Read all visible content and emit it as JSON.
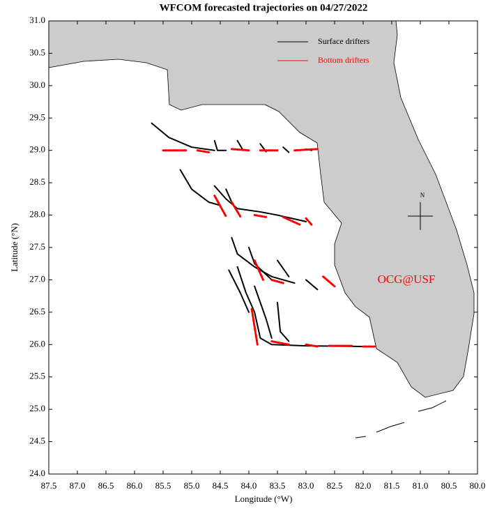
{
  "chart_data": {
    "type": "trajectory-map",
    "title": "WFCOM forecasted trajectories on 04/27/2022",
    "x_label": "Longitude (°W)",
    "y_label": "Latitude (°N)",
    "annotation": "OCG@USF",
    "compass_label": "N",
    "legend_position": "upper right",
    "xlim": [
      87.5,
      80.0
    ],
    "ylim": [
      24.0,
      31.0
    ],
    "xticks": [
      87.5,
      {
        "value": 87,
        "label": "87.0"
      },
      86.5,
      {
        "value": 86,
        "label": "86.0"
      },
      85.5,
      {
        "value": 85,
        "label": "85.0"
      },
      84.5,
      {
        "value": 84,
        "label": "84.0"
      },
      83.5,
      {
        "value": 83,
        "label": "83.0"
      },
      82.5,
      {
        "value": 82,
        "label": "82.0"
      },
      81.5,
      {
        "value": 81,
        "label": "81.0"
      },
      80.5,
      {
        "value": 80,
        "label": "80.0"
      }
    ],
    "yticks": [
      {
        "value": 24,
        "label": "24.0"
      },
      24.5,
      {
        "value": 25,
        "label": "25.0"
      },
      25.5,
      {
        "value": 26,
        "label": "26.0"
      },
      26.5,
      {
        "value": 27,
        "label": "27.0"
      },
      27.5,
      {
        "value": 28,
        "label": "28.0"
      },
      28.5,
      {
        "value": 29,
        "label": "29.0"
      },
      29.5,
      {
        "value": 30,
        "label": "30.0"
      },
      30.5,
      {
        "value": 31,
        "label": "31.0"
      }
    ],
    "series": [
      {
        "name": "Surface drifters",
        "color": "#000000",
        "tracks": [
          {
            "x": [
              85.7,
              85.4,
              85.0,
              84.6
            ],
            "y": [
              29.42,
              29.2,
              29.05,
              29.0
            ]
          },
          {
            "x": [
              84.6,
              84.55,
              84.4
            ],
            "y": [
              29.15,
              29.0,
              29.0
            ]
          },
          {
            "x": [
              84.2,
              84.1
            ],
            "y": [
              29.15,
              29.0
            ]
          },
          {
            "x": [
              83.8,
              83.7
            ],
            "y": [
              29.1,
              28.98
            ]
          },
          {
            "x": [
              83.4,
              83.3
            ],
            "y": [
              29.05,
              28.97
            ]
          },
          {
            "x": [
              83.0,
              82.9
            ],
            "y": [
              29.02,
              29.0
            ]
          },
          {
            "x": [
              85.2,
              85.0,
              84.7,
              84.5
            ],
            "y": [
              28.7,
              28.4,
              28.2,
              28.15
            ]
          },
          {
            "x": [
              84.6,
              84.4,
              84.2,
              83.8,
              83.5,
              83.0
            ],
            "y": [
              28.45,
              28.25,
              28.1,
              28.05,
              28.0,
              27.9
            ]
          },
          {
            "x": [
              84.4,
              84.3
            ],
            "y": [
              28.4,
              28.2
            ]
          },
          {
            "x": [
              84.3,
              84.2,
              83.9,
              83.6,
              83.2
            ],
            "y": [
              27.65,
              27.4,
              27.2,
              27.05,
              26.95
            ]
          },
          {
            "x": [
              84.0,
              83.9,
              83.6
            ],
            "y": [
              27.5,
              27.25,
              27.0
            ]
          },
          {
            "x": [
              83.5,
              83.3
            ],
            "y": [
              27.3,
              27.05
            ]
          },
          {
            "x": [
              83.0,
              82.8
            ],
            "y": [
              27.0,
              26.85
            ]
          },
          {
            "x": [
              84.35,
              84.15,
              84.0
            ],
            "y": [
              27.15,
              26.8,
              26.5
            ]
          },
          {
            "x": [
              84.2,
              84.05,
              83.9,
              83.8,
              83.6,
              83.0,
              82.0
            ],
            "y": [
              27.2,
              26.8,
              26.5,
              26.1,
              26.0,
              25.98,
              25.97
            ]
          },
          {
            "x": [
              83.9,
              83.7,
              83.6
            ],
            "y": [
              26.9,
              26.4,
              26.1
            ]
          },
          {
            "x": [
              83.5,
              83.45,
              83.3
            ],
            "y": [
              26.65,
              26.2,
              26.05
            ]
          }
        ]
      },
      {
        "name": "Bottom drifters",
        "color": "#ff0000",
        "tracks": [
          {
            "x": [
              85.5,
              85.1
            ],
            "y": [
              29.0,
              29.0
            ]
          },
          {
            "x": [
              84.9,
              84.7
            ],
            "y": [
              29.0,
              28.97
            ]
          },
          {
            "x": [
              84.3,
              84.0
            ],
            "y": [
              29.02,
              29.0
            ]
          },
          {
            "x": [
              83.8,
              83.5
            ],
            "y": [
              29.0,
              29.0
            ]
          },
          {
            "x": [
              83.2,
              82.8
            ],
            "y": [
              29.0,
              29.02
            ]
          },
          {
            "x": [
              84.6,
              84.4
            ],
            "y": [
              28.3,
              27.98
            ]
          },
          {
            "x": [
              84.3,
              84.15
            ],
            "y": [
              28.2,
              27.98
            ]
          },
          {
            "x": [
              83.9,
              83.7
            ],
            "y": [
              28.0,
              27.97
            ]
          },
          {
            "x": [
              83.4,
              83.1
            ],
            "y": [
              27.97,
              27.85
            ]
          },
          {
            "x": [
              83.0,
              82.9
            ],
            "y": [
              27.95,
              27.85
            ]
          },
          {
            "x": [
              83.9,
              83.75
            ],
            "y": [
              27.3,
              27.0
            ]
          },
          {
            "x": [
              83.6,
              83.4
            ],
            "y": [
              27.0,
              26.95
            ]
          },
          {
            "x": [
              82.7,
              82.5
            ],
            "y": [
              27.05,
              26.9
            ]
          },
          {
            "x": [
              83.95,
              83.85
            ],
            "y": [
              26.55,
              26.0
            ]
          },
          {
            "x": [
              83.6,
              83.3
            ],
            "y": [
              26.05,
              26.0
            ]
          },
          {
            "x": [
              83.0,
              82.8
            ],
            "y": [
              26.0,
              25.97
            ]
          },
          {
            "x": [
              82.6,
              82.2
            ],
            "y": [
              25.98,
              25.98
            ]
          },
          {
            "x": [
              82.0,
              81.8
            ],
            "y": [
              25.97,
              25.97
            ]
          }
        ]
      }
    ]
  }
}
